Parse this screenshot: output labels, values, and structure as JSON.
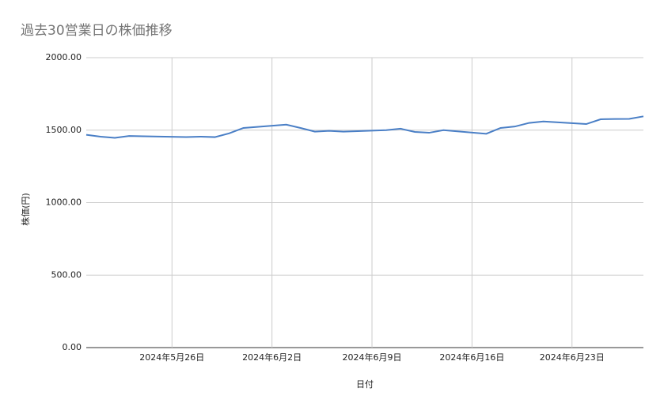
{
  "chart_data": {
    "type": "line",
    "title": "過去30営業日の株価推移",
    "x_label": "日付",
    "y_label": "株価(円)",
    "x": [
      "2024-05-20",
      "2024-05-21",
      "2024-05-22",
      "2024-05-23",
      "2024-05-24",
      "2024-05-27",
      "2024-05-28",
      "2024-05-29",
      "2024-05-30",
      "2024-05-31",
      "2024-06-03",
      "2024-06-04",
      "2024-06-05",
      "2024-06-06",
      "2024-06-07",
      "2024-06-10",
      "2024-06-11",
      "2024-06-12",
      "2024-06-13",
      "2024-06-14",
      "2024-06-17",
      "2024-06-18",
      "2024-06-19",
      "2024-06-20",
      "2024-06-21",
      "2024-06-24",
      "2024-06-25",
      "2024-06-26",
      "2024-06-27",
      "2024-06-28"
    ],
    "values": [
      1468,
      1455,
      1447,
      1460,
      1458,
      1452,
      1455,
      1452,
      1478,
      1515,
      1538,
      1515,
      1490,
      1495,
      1490,
      1500,
      1510,
      1488,
      1482,
      1500,
      1475,
      1515,
      1525,
      1550,
      1560,
      1542,
      1575,
      1577,
      1578,
      1595
    ],
    "color": "#4a7fc6",
    "xlim": [
      "2024-05-20",
      "2024-06-28"
    ],
    "xticks": [
      {
        "value": "2024-05-26",
        "label": "2024年5月26日"
      },
      {
        "value": "2024-06-02",
        "label": "2024年6月2日"
      },
      {
        "value": "2024-06-09",
        "label": "2024年6月9日"
      },
      {
        "value": "2024-06-16",
        "label": "2024年6月16日"
      },
      {
        "value": "2024-06-23",
        "label": "2024年6月23日"
      }
    ],
    "ylim": [
      0,
      2000
    ],
    "yticks": [
      {
        "value": 0,
        "label": "0.00"
      },
      {
        "value": 500,
        "label": "500.00"
      },
      {
        "value": 1000,
        "label": "1000.00"
      },
      {
        "value": 1500,
        "label": "1500.00"
      },
      {
        "value": 2000,
        "label": "2000.00"
      }
    ],
    "grid": true
  }
}
